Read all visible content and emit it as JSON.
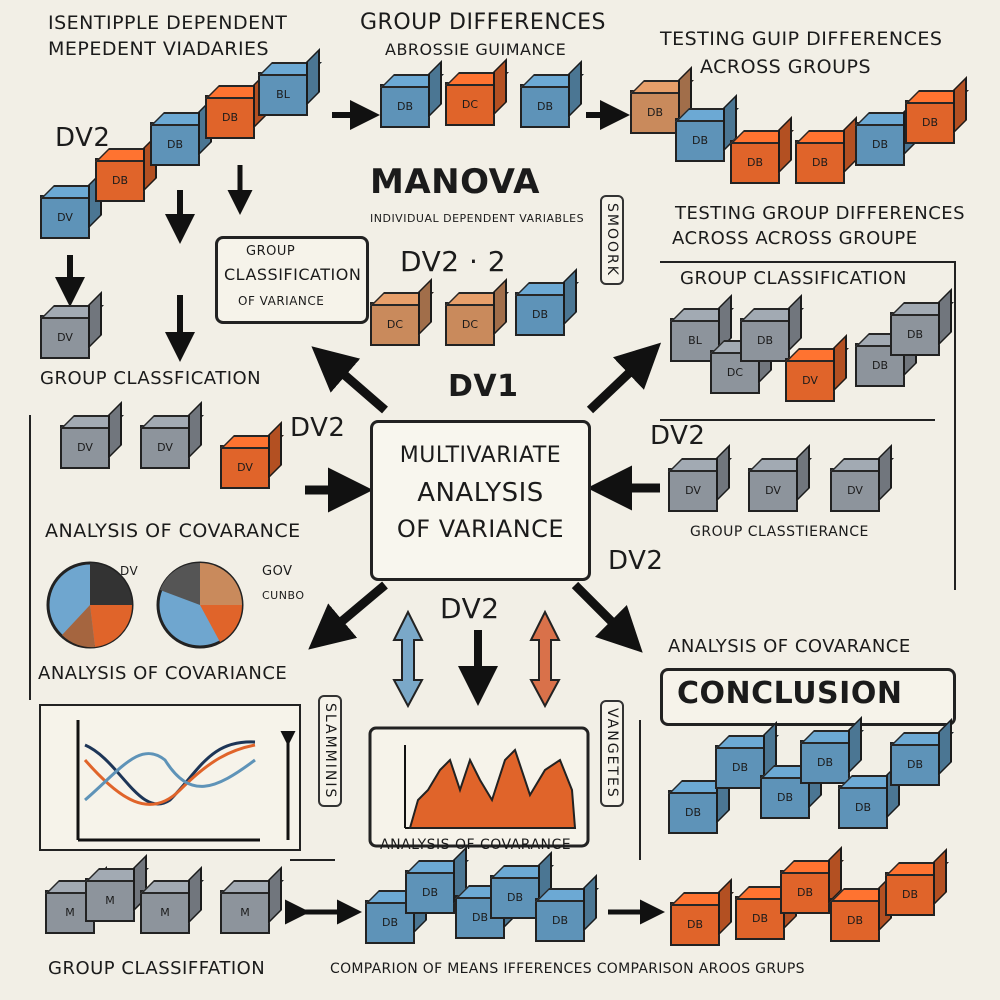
{
  "top_left_heading": [
    "ISENTIPPLE DEPENDENT",
    "MEPEDENT VIADARIES"
  ],
  "top_center_heading": [
    "GROUP DIFFERENCES",
    "ABROSSIE GUIMANCE"
  ],
  "top_right_heading": [
    "TESTING GUIP DIFFERENCES",
    "ACROSS GROUPS"
  ],
  "manova_title": "MANOVA",
  "manova_subtitle": "INDIVIDUAL DEPENDENT VARIABLES",
  "dv2_top_left": "DV2",
  "dv2_center_top": "DV2 · 2",
  "dv1_center": "DV1",
  "center_box": [
    "MULTIVARIATE",
    "ANALYSIS",
    "OF VARIANCE"
  ],
  "right_testing": [
    "TESTING GROUP DIFFERENCES",
    "ACROSS ACROSS GROUPE"
  ],
  "group_classification_box": [
    "GROUP",
    "CLASSIFICATION",
    "OF VARIANCE"
  ],
  "group_classfication_left": "GROUP CLASSFICATION",
  "group_classification_right": "GROUP CLASSIFICATION",
  "dv2_left_mid": "DV2",
  "dv2_right_mid": "DV2",
  "dv2_lower_center": "DV2",
  "dv2_right_lower": "DV2",
  "analysis_covariance_left": "ANALYSIS OF COVARANCE",
  "analysis_covariance_left2": "ANALYSIS OF COVARIANCE",
  "analysis_covariance_right": "ANALYSIS OF COVARANCE",
  "group_classtierance": "GROUP CLASSTIERANCE",
  "conclusion": "CONCLUSION",
  "chart_caption": "ANALYSIS OF COVARANCE",
  "vertical_tag_top": "SMOORK",
  "vertical_tag_mid_left": "SLAMMINIS",
  "vertical_tag_mid_right": "VANGETES",
  "bottom_group_classification": "GROUP CLASSIFFATION",
  "bottom_comparison": "COMPARION OF MEANS IFFERENCES COMPARISON AROOS GRUPS",
  "pie_note": [
    "GOV",
    "CUNBO",
    "DV"
  ],
  "cube_labels": {
    "db": "DB",
    "dv": "DV",
    "dc": "DC",
    "bl": "BL",
    "m": "M"
  },
  "colors": {
    "blue": "#5e93b8",
    "orange": "#e0642a",
    "gray": "#8d949c",
    "tan": "#c98a5c",
    "paper": "#f2efe6"
  }
}
